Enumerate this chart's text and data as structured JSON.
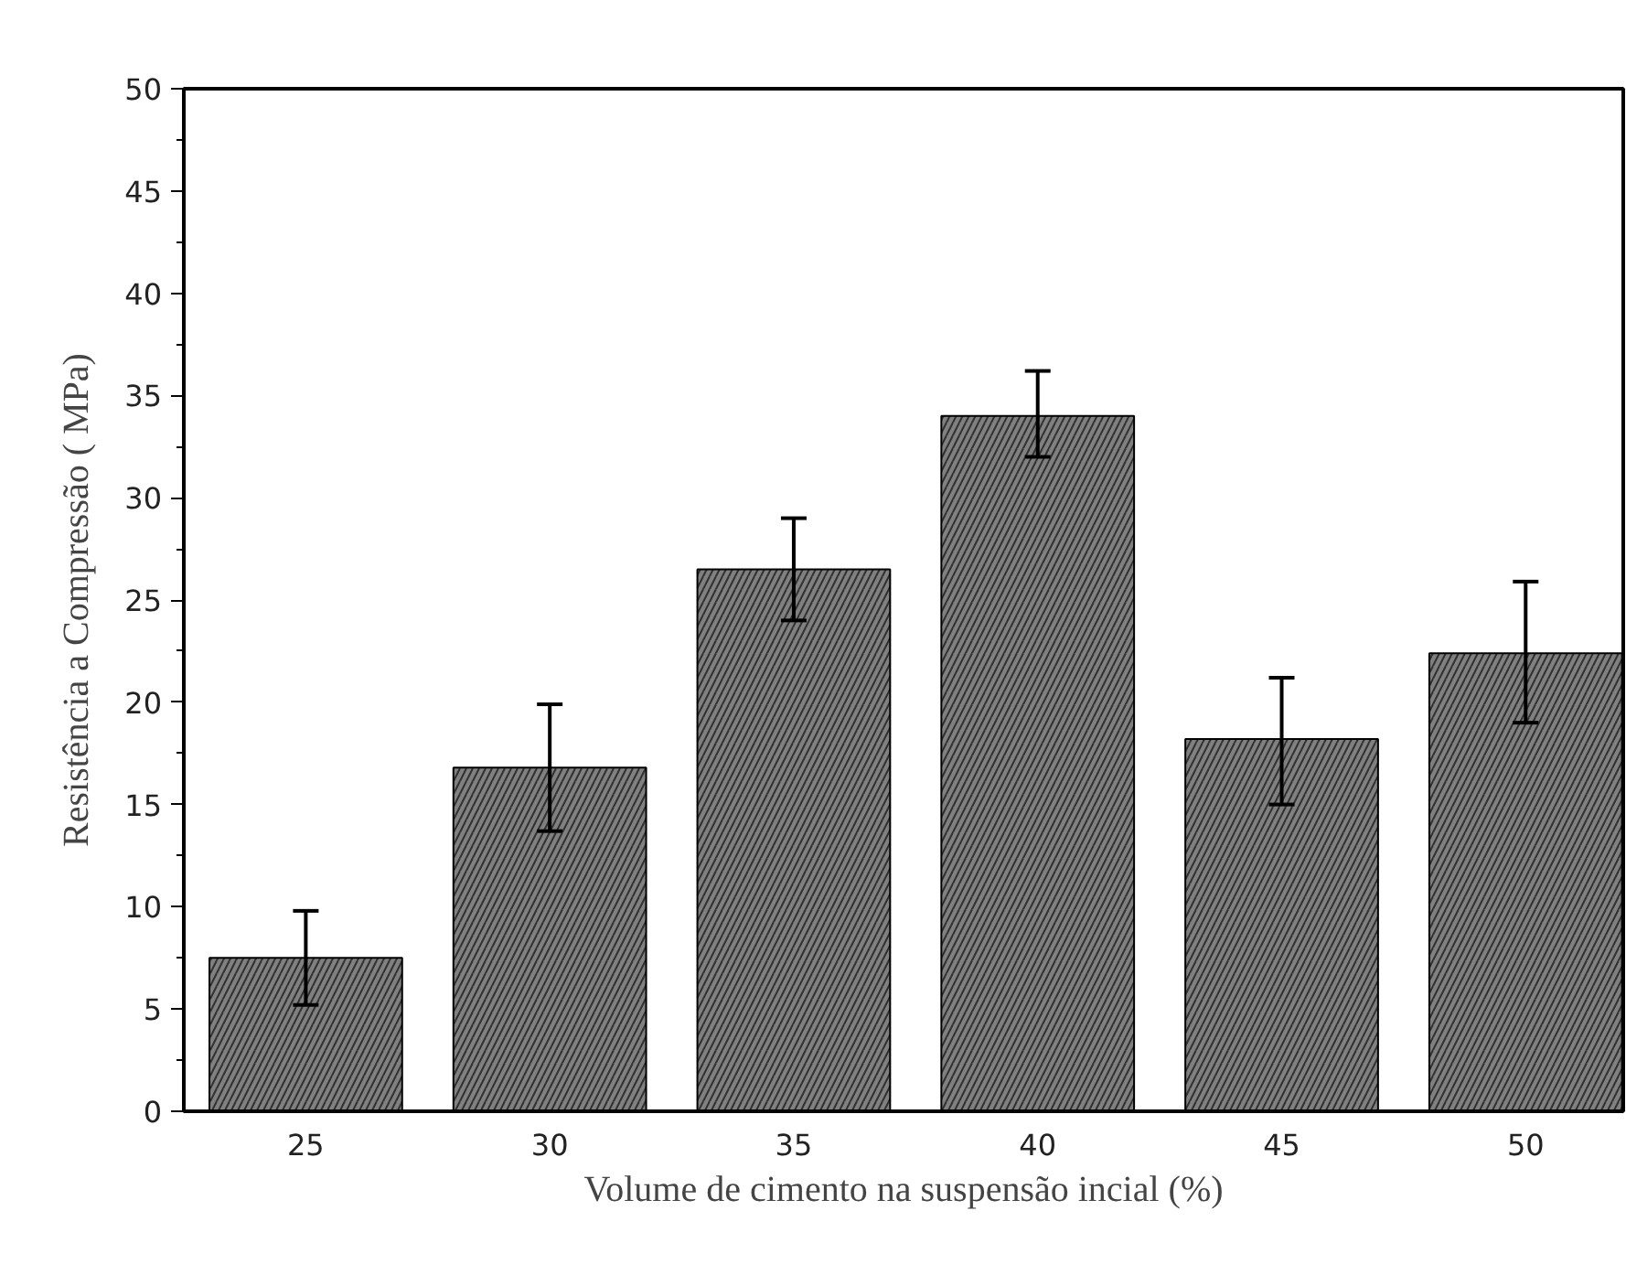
{
  "chart_data": {
    "type": "bar",
    "xlabel": "Volume de cimento na suspensão incial (%)",
    "ylabel": "Resistência a Compressão ( MPa)",
    "categories": [
      "25",
      "30",
      "35",
      "40",
      "45",
      "50"
    ],
    "values": [
      7.5,
      16.8,
      26.5,
      34.0,
      18.2,
      22.4
    ],
    "errors": [
      [
        5.2,
        9.8
      ],
      [
        13.7,
        19.9
      ],
      [
        24.0,
        29.0
      ],
      [
        32.0,
        36.2
      ],
      [
        15.0,
        21.2
      ],
      [
        19.0,
        25.9
      ]
    ],
    "color": "#808080",
    "ylim": [
      0,
      50
    ],
    "yticks": [
      0,
      5,
      10,
      15,
      20,
      25,
      30,
      35,
      40,
      45,
      50
    ],
    "grid": false
  }
}
